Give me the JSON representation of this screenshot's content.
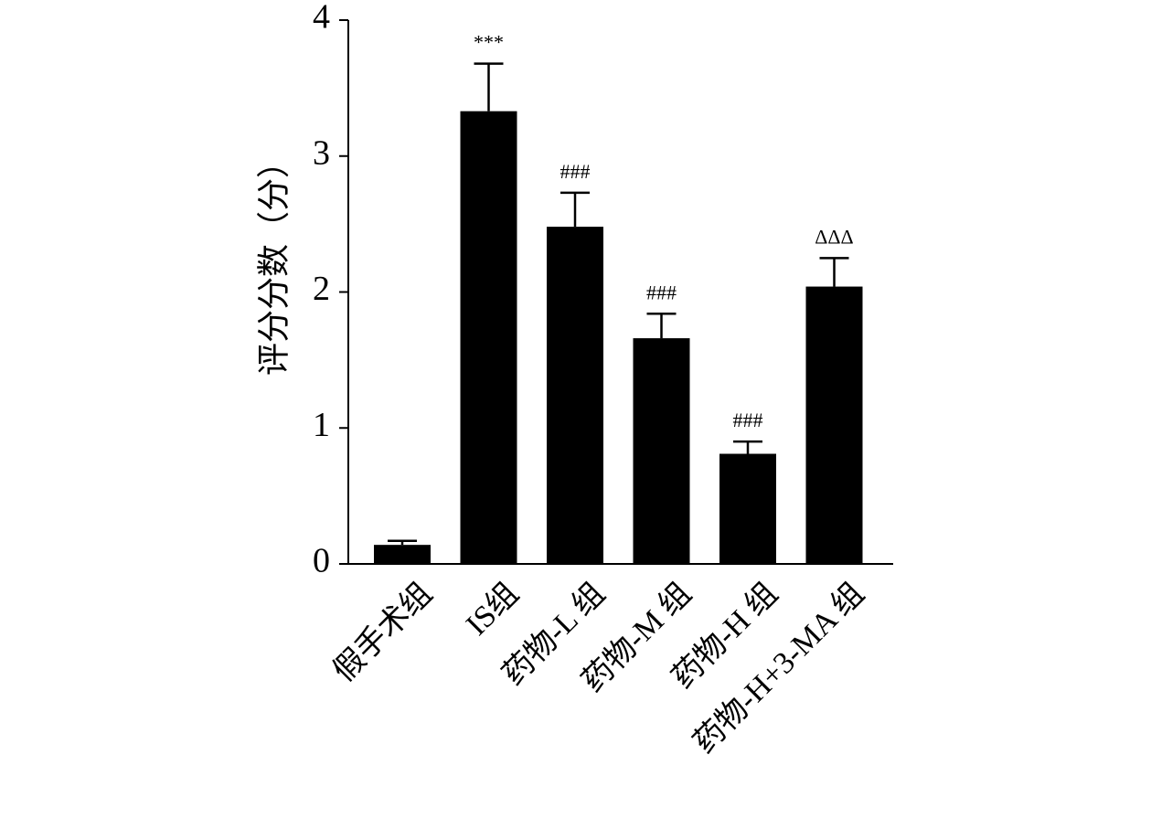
{
  "chart_data": {
    "type": "bar",
    "y_label": "评分分数（分）",
    "categories": [
      "假手术组",
      "IS组",
      "药物-L 组",
      "药物-M 组",
      "药物-H 组",
      "药物-H+3-MA 组"
    ],
    "values": [
      0.14,
      3.33,
      2.48,
      1.66,
      0.81,
      2.04
    ],
    "errors": [
      0.03,
      0.35,
      0.25,
      0.18,
      0.09,
      0.21
    ],
    "annotations": [
      null,
      "***",
      "###",
      "###",
      "###",
      "ΔΔΔ"
    ],
    "color": "#000000",
    "ylim": [
      0,
      4
    ],
    "yticks": [
      0,
      1,
      2,
      3,
      4
    ],
    "grid": false
  }
}
